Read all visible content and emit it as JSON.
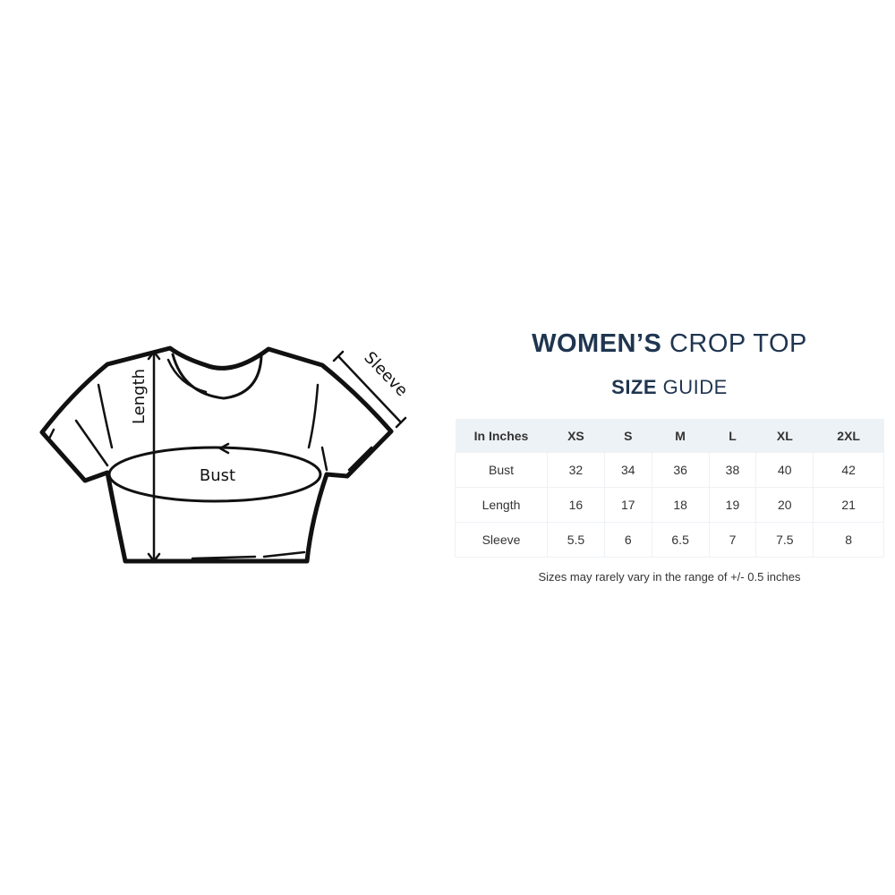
{
  "diagram": {
    "labels": {
      "length": "Length",
      "bust": "Bust",
      "sleeve": "Sleeve"
    }
  },
  "title": {
    "line1_bold": "WOMEN’S",
    "line1_light": "CROP TOP",
    "line2_bold": "SIZE",
    "line2_light": "GUIDE"
  },
  "table": {
    "headers": [
      "In Inches",
      "XS",
      "S",
      "M",
      "L",
      "XL",
      "2XL"
    ],
    "rows": [
      {
        "label": "Bust",
        "values": [
          "32",
          "34",
          "36",
          "38",
          "40",
          "42"
        ]
      },
      {
        "label": "Length",
        "values": [
          "16",
          "17",
          "18",
          "19",
          "20",
          "21"
        ]
      },
      {
        "label": "Sleeve",
        "values": [
          "5.5",
          "6",
          "6.5",
          "7",
          "7.5",
          "8"
        ]
      }
    ]
  },
  "note": "Sizes may rarely vary in the range of +/- 0.5 inches",
  "colors": {
    "title": "#1f3550",
    "header_bg": "#edf2f6"
  }
}
